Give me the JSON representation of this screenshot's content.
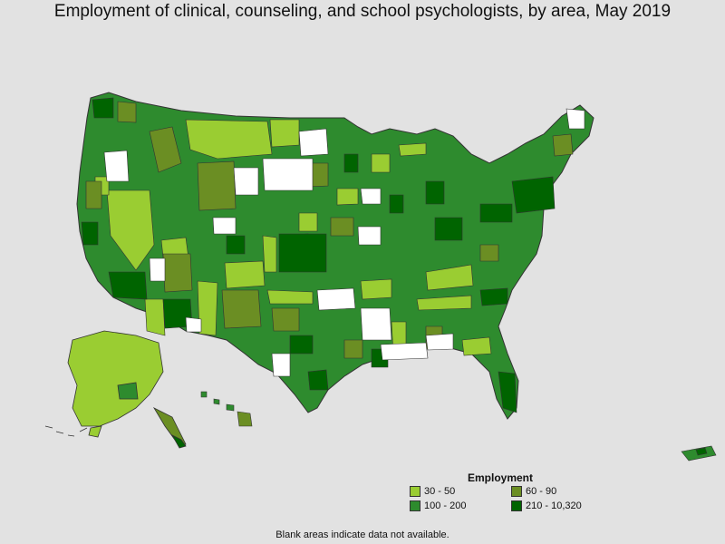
{
  "title": "Employment of clinical, counseling, and school psychologists, by area, May 2019",
  "legend": {
    "title": "Employment",
    "items": [
      {
        "label": "30 - 50",
        "color": "#9acd32"
      },
      {
        "label": "60 - 90",
        "color": "#6b8e23"
      },
      {
        "label": "100 - 200",
        "color": "#2e8b2e"
      },
      {
        "label": "210 - 10,320",
        "color": "#006400"
      }
    ]
  },
  "footnote": "Blank areas indicate data not available.",
  "colors": {
    "background": "#e2e2e2",
    "no_data": "#ffffff",
    "border": "#333333"
  }
}
